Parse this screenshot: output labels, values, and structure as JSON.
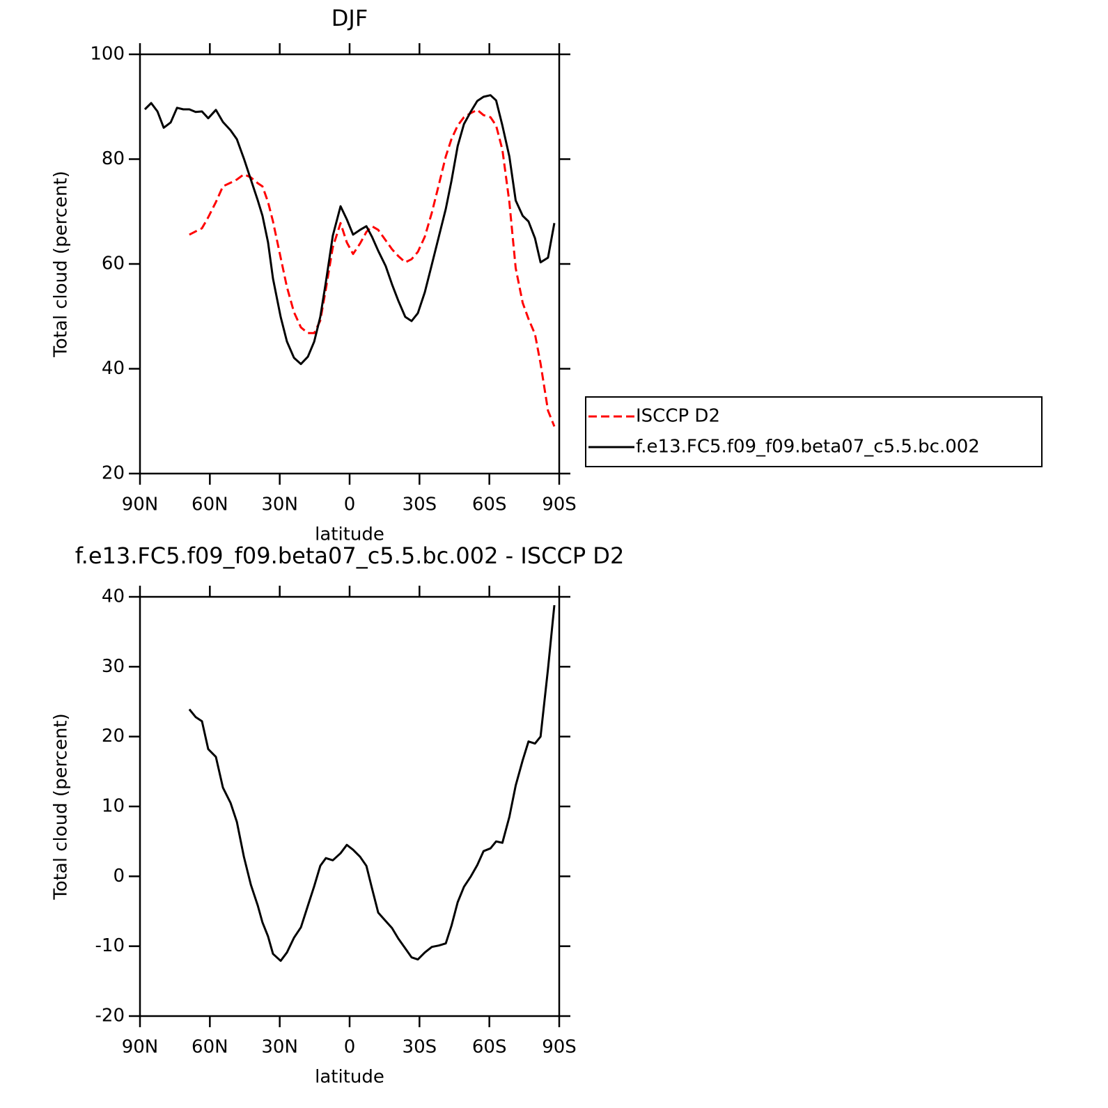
{
  "chart_data": [
    {
      "type": "line",
      "title": "DJF",
      "x_label": "latitude",
      "y_label": "Total cloud (percent)",
      "xlim": [
        90,
        -90
      ],
      "xticks": [
        {
          "value": 90,
          "label": "90N"
        },
        {
          "value": 60,
          "label": "60N"
        },
        {
          "value": 30,
          "label": "30N"
        },
        0,
        {
          "value": -30,
          "label": "30S"
        },
        {
          "value": -60,
          "label": "60S"
        },
        {
          "value": -90,
          "label": "90S"
        }
      ],
      "ylim": [
        20,
        100
      ],
      "yticks": [
        20,
        40,
        60,
        80,
        100
      ],
      "legend": "right",
      "x": [
        87.9,
        85.2,
        82.5,
        79.8,
        76.8,
        74.1,
        71.4,
        68.8,
        66.1,
        63.4,
        60.7,
        57.4,
        54.4,
        51.1,
        48.4,
        45.4,
        42.4,
        39.4,
        37.4,
        35.0,
        32.9,
        29.6,
        26.9,
        23.9,
        20.9,
        17.9,
        15.2,
        12.6,
        10.2,
        7.2,
        3.9,
        1.2,
        -1.5,
        -4.5,
        -7.2,
        -9.6,
        -12.3,
        -15.5,
        -18.2,
        -20.9,
        -23.9,
        -26.6,
        -29.3,
        -32.3,
        -35.3,
        -38.3,
        -41.3,
        -43.7,
        -46.4,
        -49.1,
        -52.1,
        -54.8,
        -57.5,
        -60.5,
        -62.9,
        -65.6,
        -68.6,
        -71.3,
        -74.3,
        -76.8,
        -79.6,
        -82.0,
        -85.2,
        -87.9
      ],
      "series": [
        {
          "name": "ISCCP D2",
          "color": "#ff0000",
          "dashed": true,
          "values": [
            null,
            null,
            null,
            null,
            null,
            null,
            null,
            65.6,
            66.2,
            66.8,
            68.9,
            71.8,
            74.8,
            75.5,
            76.1,
            77.1,
            76.5,
            75.4,
            74.8,
            71.8,
            68.1,
            61.2,
            55.6,
            50.8,
            47.9,
            46.8,
            46.8,
            49.2,
            55.2,
            63.2,
            67.8,
            64.1,
            61.9,
            63.9,
            66.1,
            67.2,
            66.5,
            64.5,
            62.8,
            61.5,
            60.3,
            60.9,
            62.3,
            65.2,
            69.8,
            75.1,
            80.5,
            83.8,
            86.4,
            88.0,
            88.8,
            89.4,
            88.4,
            88.0,
            86.4,
            81.8,
            71.8,
            59.2,
            52.6,
            49.5,
            46.6,
            41.0,
            32.0,
            29.0
          ]
        },
        {
          "name": "f.e13.FC5.f09_f09.beta07_c5.5.bc.002",
          "color": "#000000",
          "dashed": false,
          "values": [
            89.5,
            90.7,
            89.1,
            86.0,
            87.0,
            89.8,
            89.5,
            89.5,
            89.0,
            89.1,
            87.8,
            89.4,
            87.1,
            85.5,
            83.8,
            80.1,
            76.1,
            72.1,
            69.2,
            64.1,
            57.2,
            49.9,
            45.2,
            42.1,
            40.9,
            42.3,
            45.2,
            49.9,
            56.5,
            65.4,
            71.0,
            68.5,
            65.6,
            66.5,
            67.2,
            65.2,
            62.5,
            59.6,
            56.1,
            53.0,
            49.9,
            49.1,
            50.6,
            54.6,
            59.9,
            65.2,
            70.5,
            75.8,
            82.5,
            86.7,
            89.1,
            91.1,
            91.9,
            92.2,
            91.2,
            86.4,
            80.5,
            72.1,
            69.2,
            68.1,
            64.9,
            60.3,
            61.2,
            67.8
          ]
        }
      ]
    },
    {
      "type": "line",
      "title": "f.e13.FC5.f09_f09.beta07_c5.5.bc.002 - ISCCP D2",
      "x_label": "latitude",
      "y_label": "Total cloud (percent)",
      "xlim": [
        90,
        -90
      ],
      "xticks": [
        {
          "value": 90,
          "label": "90N"
        },
        {
          "value": 60,
          "label": "60N"
        },
        {
          "value": 30,
          "label": "30N"
        },
        0,
        {
          "value": -30,
          "label": "30S"
        },
        {
          "value": -60,
          "label": "60S"
        },
        {
          "value": -90,
          "label": "90S"
        }
      ],
      "ylim": [
        -20,
        40
      ],
      "yticks": [
        -20,
        -10,
        0,
        10,
        20,
        30,
        40
      ],
      "x": [
        68.8,
        66.1,
        63.4,
        60.7,
        57.4,
        54.4,
        51.1,
        48.4,
        45.4,
        42.4,
        39.4,
        37.4,
        35.0,
        32.9,
        29.6,
        26.9,
        23.9,
        20.9,
        17.9,
        15.2,
        12.6,
        10.2,
        7.2,
        3.9,
        1.2,
        -1.5,
        -4.5,
        -7.2,
        -9.6,
        -12.3,
        -15.5,
        -18.2,
        -20.9,
        -23.9,
        -26.6,
        -29.3,
        -32.3,
        -35.3,
        -38.3,
        -41.3,
        -43.7,
        -46.4,
        -49.1,
        -52.1,
        -54.8,
        -57.5,
        -60.5,
        -62.9,
        -65.6,
        -68.6,
        -71.3,
        -74.3,
        -76.8,
        -79.6,
        -82.0,
        -85.2,
        -87.9
      ],
      "series": [
        {
          "color": "#000000",
          "dashed": false,
          "values": [
            23.9,
            22.8,
            22.2,
            18.2,
            17.1,
            12.7,
            10.5,
            7.8,
            2.8,
            -1.2,
            -4.2,
            -6.6,
            -8.6,
            -11.1,
            -12.1,
            -10.9,
            -8.8,
            -7.3,
            -4.2,
            -1.4,
            1.5,
            2.6,
            2.3,
            3.3,
            4.5,
            3.8,
            2.8,
            1.5,
            -1.7,
            -5.2,
            -6.4,
            -7.4,
            -8.9,
            -10.3,
            -11.6,
            -11.9,
            -10.9,
            -10.1,
            -9.9,
            -9.6,
            -7.1,
            -3.7,
            -1.5,
            0,
            1.6,
            3.6,
            4.0,
            5.0,
            4.8,
            8.5,
            13.0,
            16.6,
            19.3,
            19.0,
            20.0,
            29.7,
            38.8
          ]
        }
      ]
    }
  ]
}
